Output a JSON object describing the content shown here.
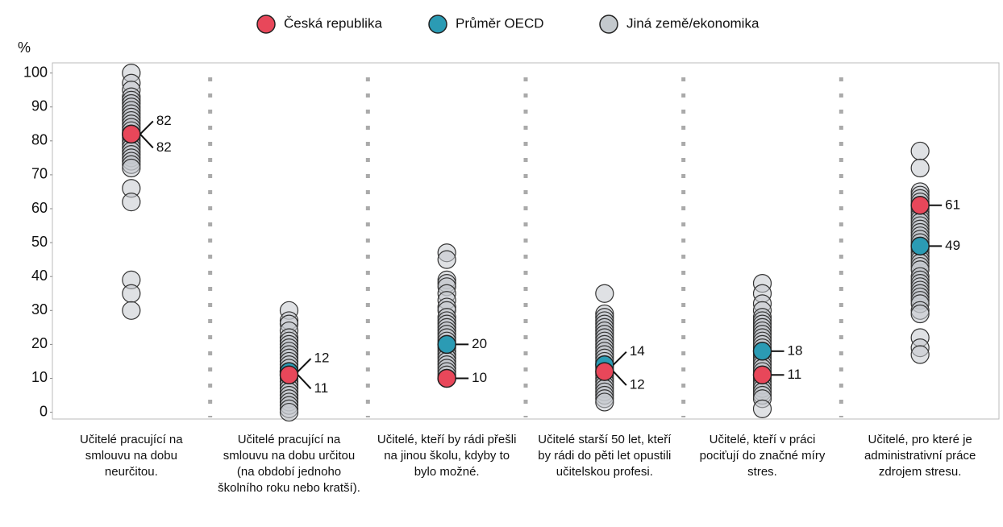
{
  "chart_data": {
    "type": "dot",
    "y_label": "%",
    "categories": [
      "Učitelé pracující na smlouvu na dobu neurčitou.",
      "Učitelé pracující na smlouvu na dobu určitou (na období jednoho školního roku nebo kratší).",
      "Učitelé, kteří by rádi přešli na jinou školu, kdyby to bylo možné.",
      "Učitelé starší 50 let, kteří by rádi do pěti let opustili učitelskou profesi.",
      "Učitelé, kteří v práci pociťují do značné míry stres.",
      "Učitelé, pro které je administrativní práce zdrojem stresu."
    ],
    "series": [
      {
        "name": "Česká republika",
        "color": "#e8475a",
        "values": [
          82,
          11,
          10,
          12,
          11,
          61
        ]
      },
      {
        "name": "Průměr OECD",
        "color": "#2b9bb4",
        "values": [
          82,
          12,
          20,
          14,
          18,
          49
        ]
      },
      {
        "name": "Jiná země/ekonomika",
        "color": "#c4c9cd",
        "values": [
          [
            100,
            97,
            95,
            93,
            92,
            91,
            90,
            89,
            88,
            87,
            86,
            85,
            84,
            83,
            81,
            80,
            79,
            78,
            77,
            76,
            75,
            74,
            73,
            72,
            66,
            62,
            39,
            35,
            30
          ],
          [
            30,
            27,
            26,
            24,
            22,
            21,
            20,
            19,
            18,
            17,
            16,
            15,
            14,
            13,
            10,
            9,
            8,
            7,
            6,
            5,
            4,
            3,
            2,
            1,
            0
          ],
          [
            47,
            45,
            39,
            38,
            37,
            35,
            33,
            31,
            30,
            28,
            27,
            26,
            25,
            24,
            23,
            22,
            21,
            19,
            18,
            17,
            16,
            15,
            14,
            13,
            12,
            11,
            10
          ],
          [
            35,
            29,
            28,
            27,
            26,
            25,
            24,
            23,
            22,
            21,
            20,
            19,
            18,
            17,
            16,
            15,
            13,
            11,
            10,
            9,
            8,
            7,
            6,
            5,
            4,
            3
          ],
          [
            38,
            35,
            32,
            30,
            28,
            27,
            26,
            25,
            24,
            23,
            22,
            21,
            20,
            19,
            17,
            16,
            15,
            14,
            13,
            12,
            10,
            9,
            8,
            7,
            6,
            5,
            4,
            1
          ],
          [
            77,
            72,
            65,
            64,
            63,
            62,
            60,
            59,
            58,
            57,
            56,
            55,
            54,
            53,
            52,
            51,
            50,
            48,
            47,
            46,
            45,
            44,
            43,
            42,
            40,
            39,
            38,
            37,
            36,
            35,
            34,
            33,
            32,
            30,
            29,
            22,
            19,
            17
          ]
        ]
      }
    ],
    "ylim": [
      -2,
      103
    ],
    "yticks": [
      0,
      10,
      20,
      30,
      40,
      50,
      60,
      70,
      80,
      90,
      100
    ]
  }
}
